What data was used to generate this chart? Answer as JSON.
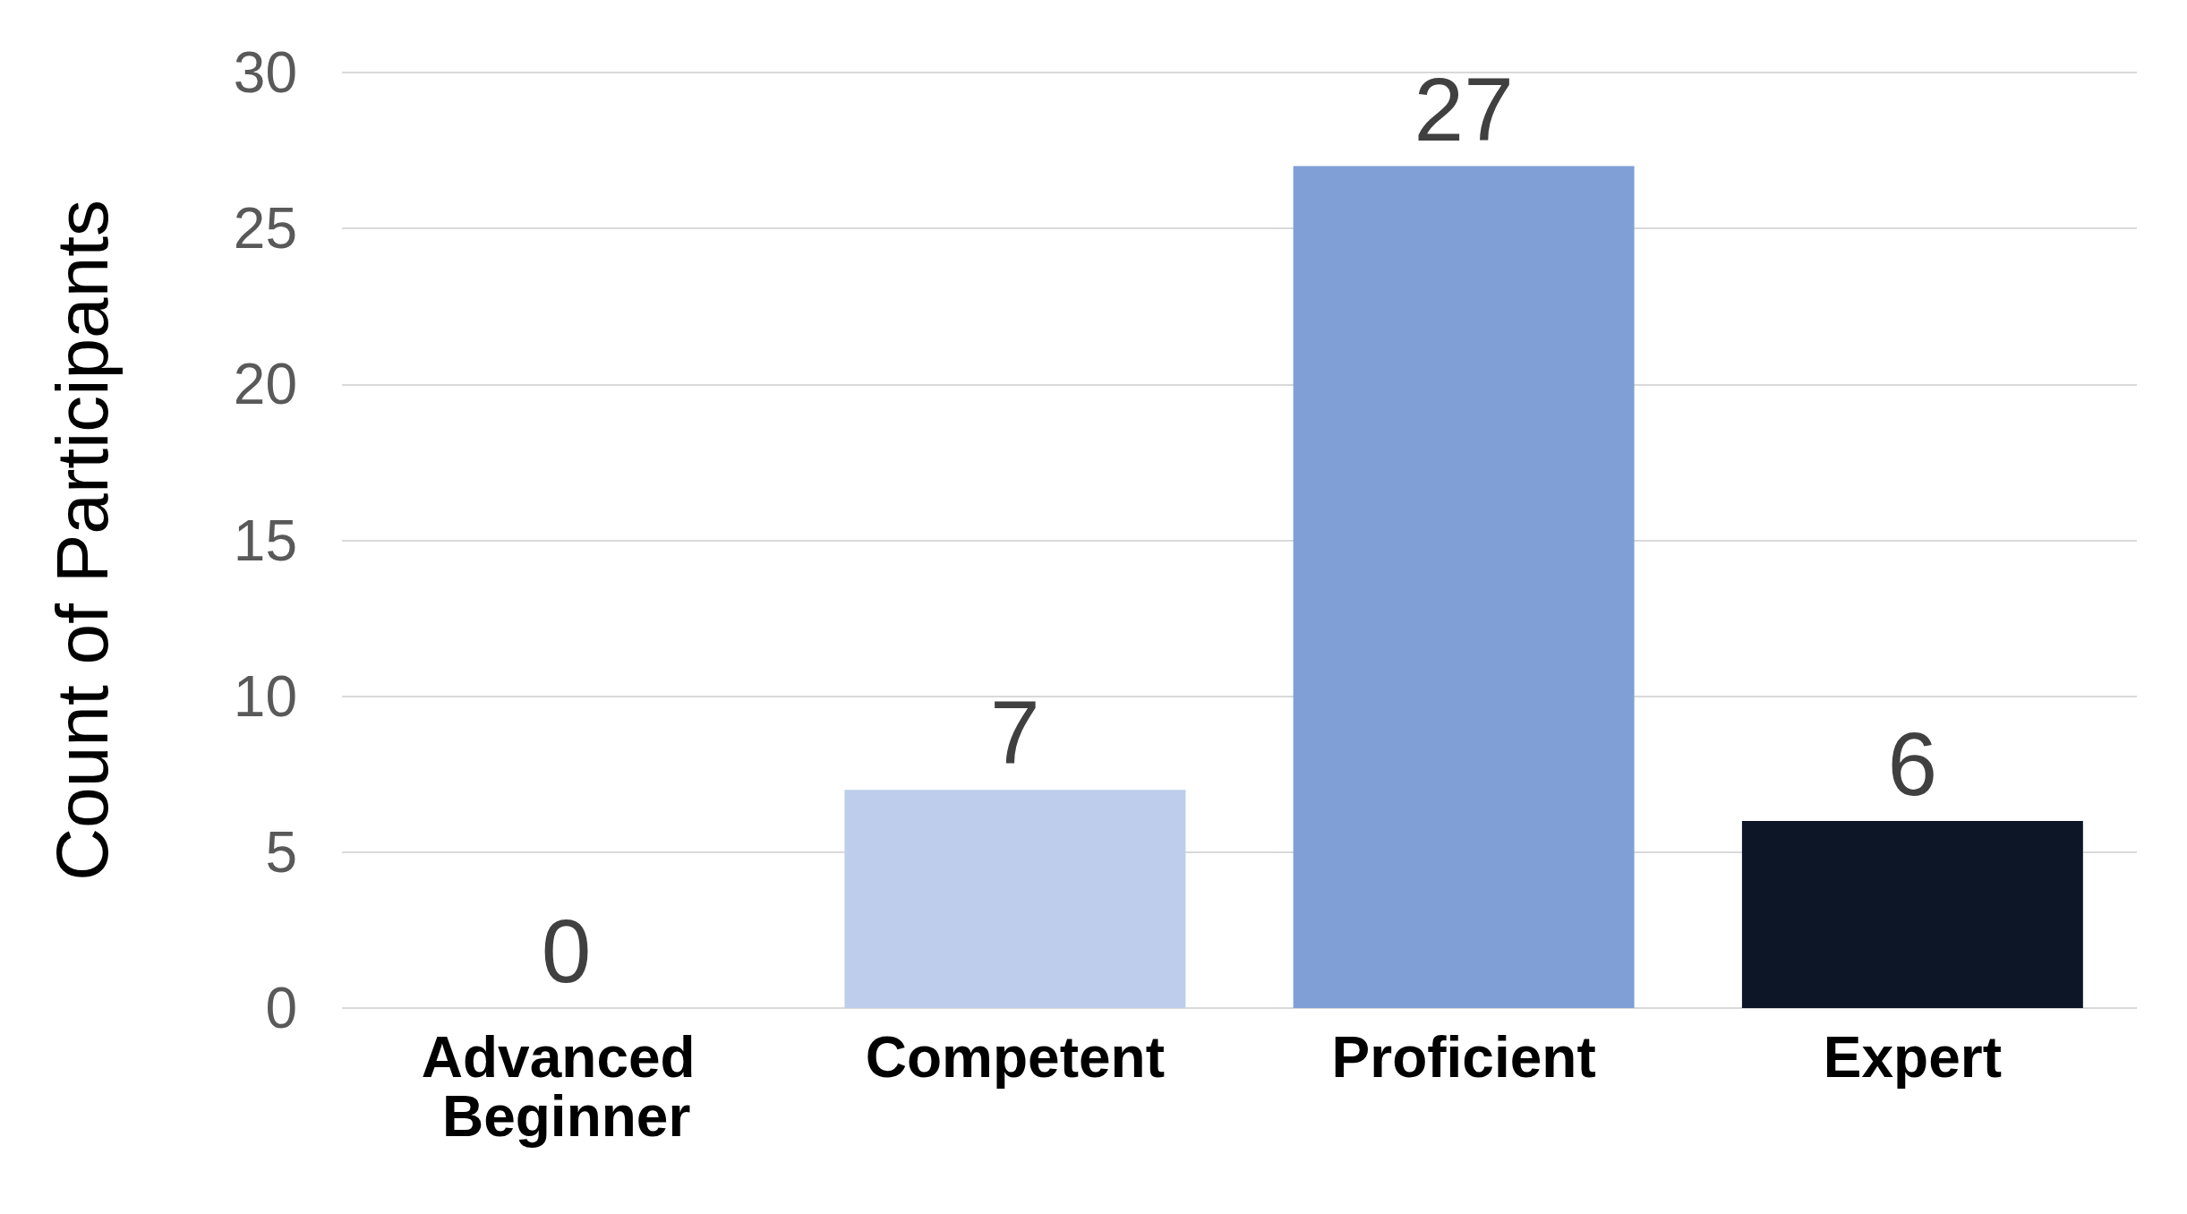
{
  "chart_data": {
    "type": "bar",
    "ylabel": "Count of Participants",
    "categories": [
      "Advanced Beginner",
      "Competent",
      "Proficient",
      "Expert"
    ],
    "values": [
      0,
      7,
      27,
      6
    ],
    "colors": [
      "#dfe7f5",
      "#bdcdeb",
      "#7f9fd6",
      "#0d1626"
    ],
    "ylim": [
      0,
      30
    ],
    "yticks": [
      0,
      5,
      10,
      15,
      20,
      25,
      30
    ],
    "grid": "y",
    "data_labels": true
  }
}
